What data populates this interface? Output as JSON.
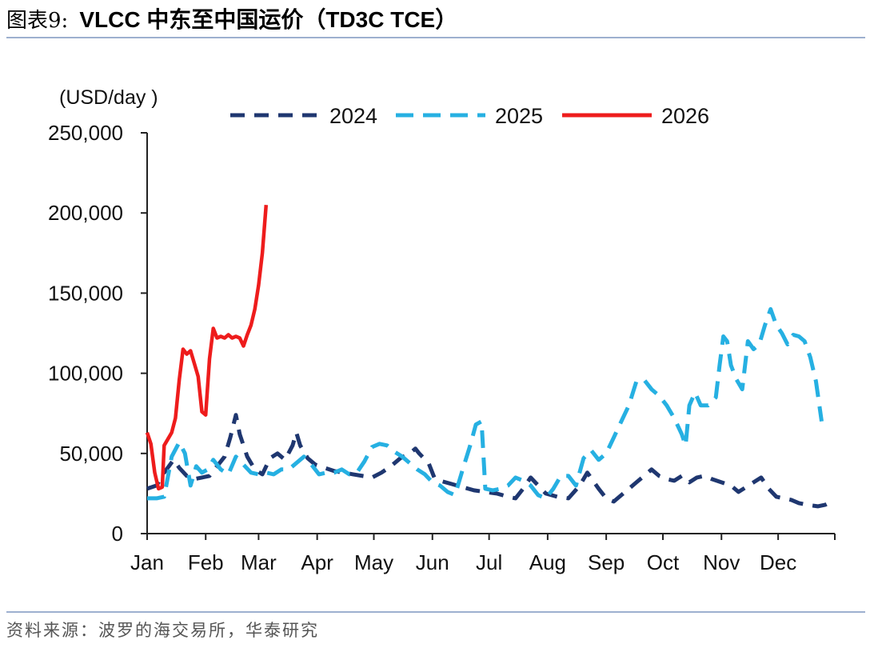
{
  "figure": {
    "label": "图表9:",
    "title": "VLCC 中东至中国运价（TD3C TCE）",
    "source": "资料来源：波罗的海交易所，华泰研究"
  },
  "chart_data": {
    "type": "line",
    "ylabel": "(USD/day )",
    "xlabel": "",
    "ylim": [
      0,
      250000
    ],
    "yticks": [
      0,
      50000,
      100000,
      150000,
      200000,
      250000
    ],
    "ytick_labels": [
      "0",
      "50,000",
      "100,000",
      "150,000",
      "200,000",
      "250,000"
    ],
    "x_unit": "day of year",
    "xlim": [
      1,
      365
    ],
    "months": [
      {
        "label": "Jan",
        "day": 1
      },
      {
        "label": "Feb",
        "day": 32
      },
      {
        "label": "Mar",
        "day": 60
      },
      {
        "label": "Apr",
        "day": 91
      },
      {
        "label": "May",
        "day": 121
      },
      {
        "label": "Jun",
        "day": 152
      },
      {
        "label": "Jul",
        "day": 182
      },
      {
        "label": "Aug",
        "day": 213
      },
      {
        "label": "Sep",
        "day": 244
      },
      {
        "label": "Oct",
        "day": 274
      },
      {
        "label": "Nov",
        "day": 305
      },
      {
        "label": "Dec",
        "day": 335
      }
    ],
    "legend_position": "top",
    "grid": false,
    "series": [
      {
        "name": "2024",
        "color": "#1f3770",
        "style": "dashed",
        "points": [
          [
            1,
            28000
          ],
          [
            6,
            30000
          ],
          [
            10,
            38000
          ],
          [
            15,
            46000
          ],
          [
            18,
            41000
          ],
          [
            22,
            36000
          ],
          [
            26,
            34000
          ],
          [
            30,
            35000
          ],
          [
            34,
            36000
          ],
          [
            38,
            42000
          ],
          [
            42,
            48000
          ],
          [
            45,
            60000
          ],
          [
            48,
            74000
          ],
          [
            50,
            62000
          ],
          [
            54,
            48000
          ],
          [
            58,
            40000
          ],
          [
            62,
            37000
          ],
          [
            66,
            47000
          ],
          [
            70,
            50000
          ],
          [
            74,
            46000
          ],
          [
            78,
            55000
          ],
          [
            80,
            63000
          ],
          [
            82,
            55000
          ],
          [
            86,
            47000
          ],
          [
            90,
            43000
          ],
          [
            95,
            41000
          ],
          [
            100,
            39000
          ],
          [
            105,
            38000
          ],
          [
            110,
            37000
          ],
          [
            115,
            36000
          ],
          [
            120,
            35000
          ],
          [
            125,
            38000
          ],
          [
            130,
            42000
          ],
          [
            135,
            47000
          ],
          [
            140,
            50000
          ],
          [
            143,
            53000
          ],
          [
            145,
            50000
          ],
          [
            150,
            44000
          ],
          [
            153,
            35000
          ],
          [
            156,
            33000
          ],
          [
            162,
            31000
          ],
          [
            168,
            29000
          ],
          [
            174,
            27000
          ],
          [
            180,
            26000
          ],
          [
            186,
            25000
          ],
          [
            192,
            23000
          ],
          [
            196,
            22000
          ],
          [
            200,
            28000
          ],
          [
            204,
            35000
          ],
          [
            208,
            30000
          ],
          [
            212,
            25000
          ],
          [
            218,
            23000
          ],
          [
            224,
            22000
          ],
          [
            230,
            30000
          ],
          [
            234,
            38000
          ],
          [
            237,
            33000
          ],
          [
            240,
            28000
          ],
          [
            244,
            22000
          ],
          [
            248,
            20000
          ],
          [
            252,
            24000
          ],
          [
            256,
            28000
          ],
          [
            260,
            32000
          ],
          [
            264,
            36000
          ],
          [
            268,
            40000
          ],
          [
            272,
            36000
          ],
          [
            276,
            34000
          ],
          [
            280,
            33000
          ],
          [
            284,
            36000
          ],
          [
            288,
            32000
          ],
          [
            292,
            35000
          ],
          [
            296,
            36000
          ],
          [
            300,
            34000
          ],
          [
            305,
            32000
          ],
          [
            310,
            30000
          ],
          [
            314,
            26000
          ],
          [
            318,
            29000
          ],
          [
            322,
            32000
          ],
          [
            326,
            35000
          ],
          [
            330,
            28000
          ],
          [
            334,
            23000
          ],
          [
            338,
            22000
          ],
          [
            342,
            21000
          ],
          [
            346,
            19000
          ],
          [
            350,
            18000
          ],
          [
            356,
            17000
          ],
          [
            360,
            18000
          ],
          [
            365,
            21000
          ]
        ]
      },
      {
        "name": "2025",
        "color": "#26b0e2",
        "style": "dashed",
        "points": [
          [
            1,
            22000
          ],
          [
            6,
            22000
          ],
          [
            10,
            23000
          ],
          [
            14,
            48000
          ],
          [
            18,
            57000
          ],
          [
            21,
            50000
          ],
          [
            24,
            30000
          ],
          [
            27,
            42000
          ],
          [
            30,
            38000
          ],
          [
            33,
            40000
          ],
          [
            36,
            46000
          ],
          [
            40,
            40000
          ],
          [
            44,
            37000
          ],
          [
            48,
            48000
          ],
          [
            52,
            43000
          ],
          [
            56,
            38000
          ],
          [
            60,
            37000
          ],
          [
            64,
            38000
          ],
          [
            68,
            37000
          ],
          [
            72,
            40000
          ],
          [
            76,
            40000
          ],
          [
            80,
            44000
          ],
          [
            84,
            48000
          ],
          [
            88,
            43000
          ],
          [
            92,
            37000
          ],
          [
            96,
            38000
          ],
          [
            100,
            38000
          ],
          [
            104,
            40000
          ],
          [
            108,
            37000
          ],
          [
            112,
            38000
          ],
          [
            116,
            45000
          ],
          [
            120,
            54000
          ],
          [
            124,
            56000
          ],
          [
            128,
            55000
          ],
          [
            132,
            51000
          ],
          [
            136,
            48000
          ],
          [
            140,
            44000
          ],
          [
            144,
            40000
          ],
          [
            148,
            37000
          ],
          [
            152,
            32000
          ],
          [
            156,
            30000
          ],
          [
            160,
            26000
          ],
          [
            164,
            24000
          ],
          [
            168,
            40000
          ],
          [
            172,
            55000
          ],
          [
            175,
            68000
          ],
          [
            178,
            70000
          ],
          [
            180,
            28000
          ],
          [
            184,
            27000
          ],
          [
            188,
            28000
          ],
          [
            192,
            30000
          ],
          [
            196,
            35000
          ],
          [
            200,
            33000
          ],
          [
            204,
            30000
          ],
          [
            208,
            24000
          ],
          [
            212,
            22000
          ],
          [
            216,
            28000
          ],
          [
            220,
            36000
          ],
          [
            224,
            36000
          ],
          [
            228,
            30000
          ],
          [
            232,
            47000
          ],
          [
            236,
            52000
          ],
          [
            240,
            46000
          ],
          [
            244,
            50000
          ],
          [
            248,
            60000
          ],
          [
            252,
            70000
          ],
          [
            256,
            80000
          ],
          [
            260,
            95000
          ],
          [
            264,
            96000
          ],
          [
            268,
            90000
          ],
          [
            272,
            86000
          ],
          [
            276,
            80000
          ],
          [
            280,
            72000
          ],
          [
            284,
            62000
          ],
          [
            286,
            55000
          ],
          [
            288,
            80000
          ],
          [
            291,
            88000
          ],
          [
            294,
            80000
          ],
          [
            298,
            80000
          ],
          [
            302,
            85000
          ],
          [
            304,
            105000
          ],
          [
            306,
            123000
          ],
          [
            308,
            120000
          ],
          [
            310,
            105000
          ],
          [
            313,
            96000
          ],
          [
            316,
            90000
          ],
          [
            319,
            120000
          ],
          [
            322,
            115000
          ],
          [
            325,
            118000
          ],
          [
            328,
            130000
          ],
          [
            331,
            140000
          ],
          [
            334,
            130000
          ],
          [
            337,
            125000
          ],
          [
            340,
            118000
          ],
          [
            343,
            124000
          ],
          [
            346,
            123000
          ],
          [
            349,
            120000
          ],
          [
            352,
            110000
          ],
          [
            355,
            95000
          ],
          [
            358,
            70000
          ]
        ]
      },
      {
        "name": "2026",
        "color": "#ee1c1c",
        "style": "solid",
        "points": [
          [
            1,
            63000
          ],
          [
            3,
            56000
          ],
          [
            5,
            38000
          ],
          [
            7,
            28000
          ],
          [
            9,
            29000
          ],
          [
            10,
            55000
          ],
          [
            12,
            59000
          ],
          [
            14,
            63000
          ],
          [
            16,
            72000
          ],
          [
            18,
            96000
          ],
          [
            20,
            115000
          ],
          [
            22,
            112000
          ],
          [
            24,
            114000
          ],
          [
            26,
            106000
          ],
          [
            28,
            98000
          ],
          [
            30,
            76000
          ],
          [
            32,
            74000
          ],
          [
            34,
            109000
          ],
          [
            36,
            128000
          ],
          [
            38,
            122000
          ],
          [
            40,
            123000
          ],
          [
            42,
            122000
          ],
          [
            44,
            124000
          ],
          [
            46,
            122000
          ],
          [
            48,
            123000
          ],
          [
            50,
            122000
          ],
          [
            52,
            117000
          ],
          [
            54,
            124000
          ],
          [
            56,
            130000
          ],
          [
            58,
            140000
          ],
          [
            60,
            155000
          ],
          [
            62,
            175000
          ],
          [
            64,
            205000
          ]
        ]
      }
    ]
  }
}
